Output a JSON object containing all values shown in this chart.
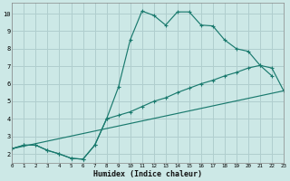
{
  "xlabel": "Humidex (Indice chaleur)",
  "bg_color": "#cce8e6",
  "line_color": "#1a7a6e",
  "grid_color": "#b0cece",
  "xlim": [
    0,
    23
  ],
  "ylim": [
    1.5,
    10.6
  ],
  "xticks": [
    0,
    1,
    2,
    3,
    4,
    5,
    6,
    7,
    8,
    9,
    10,
    11,
    12,
    13,
    14,
    15,
    16,
    17,
    18,
    19,
    20,
    21,
    22,
    23
  ],
  "yticks": [
    2,
    3,
    4,
    5,
    6,
    7,
    8,
    9,
    10
  ],
  "line1_x": [
    0,
    1,
    2,
    3,
    4,
    5,
    6,
    7,
    8,
    9,
    10,
    11,
    12,
    13,
    14,
    15,
    16,
    17,
    18,
    19,
    20,
    21,
    22
  ],
  "line1_y": [
    2.3,
    2.5,
    2.5,
    2.2,
    2.0,
    1.75,
    1.7,
    2.5,
    4.0,
    5.8,
    8.5,
    10.15,
    9.9,
    9.35,
    10.1,
    10.1,
    9.35,
    9.3,
    8.5,
    8.0,
    7.85,
    7.05,
    6.45
  ],
  "line2_x": [
    0,
    1,
    2,
    3,
    4,
    5,
    6,
    7,
    8,
    9,
    10,
    11,
    12,
    13,
    14,
    15,
    16,
    17,
    18,
    19,
    20,
    21,
    22,
    23
  ],
  "line2_y": [
    2.3,
    2.5,
    2.5,
    2.2,
    2.0,
    1.75,
    1.7,
    2.5,
    4.0,
    4.2,
    4.4,
    4.7,
    5.0,
    5.2,
    5.5,
    5.75,
    6.0,
    6.2,
    6.45,
    6.65,
    6.9,
    7.05,
    6.9,
    5.6
  ],
  "line3_x": [
    0,
    23
  ],
  "line3_y": [
    2.3,
    5.6
  ]
}
